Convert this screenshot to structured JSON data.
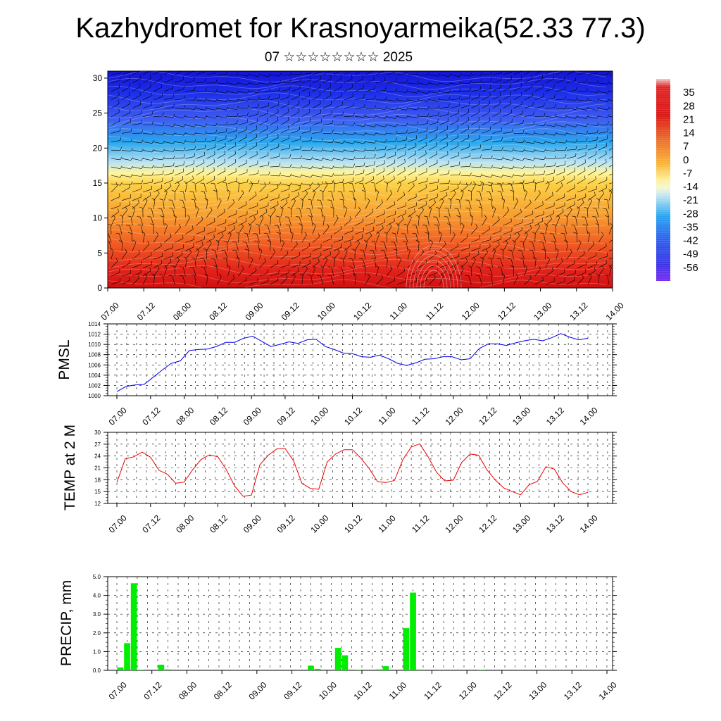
{
  "header": {
    "title": "Kazhydromet for Krasnoyarmeika(52.33 77.3)",
    "subtitle": "07 ☆☆☆☆☆☆☆☆ 2025"
  },
  "chart_data": [
    {
      "type": "heatmap",
      "title": "",
      "ylim": [
        0,
        31
      ],
      "y_ticks": [
        "0",
        "5",
        "10",
        "15",
        "20",
        "25",
        "30"
      ],
      "x_ticks": [
        "07.00",
        "07.12",
        "08.00",
        "08.12",
        "09.00",
        "09.12",
        "10.00",
        "10.12",
        "11.00",
        "11.12",
        "12.00",
        "12.12",
        "13.00",
        "13.12",
        "14.00"
      ],
      "colorbar": {
        "labels": [
          "35",
          "28",
          "21",
          "14",
          "7",
          "0",
          "-7",
          "-14",
          "-21",
          "-28",
          "-35",
          "-42",
          "-49",
          "-56"
        ],
        "min": -63,
        "max": 42
      },
      "overlay": "wind barbs"
    },
    {
      "type": "line",
      "ylabel": "PMSL",
      "ylim": [
        1000,
        1014
      ],
      "y_ticks": [
        "1000",
        "1002",
        "1004",
        "1006",
        "1008",
        "1010",
        "1012",
        "1014"
      ],
      "x_ticks": [
        "07.00",
        "07.12",
        "08.00",
        "08.12",
        "09.00",
        "09.12",
        "10.00",
        "10.12",
        "11.00",
        "11.12",
        "12.00",
        "12.12",
        "13.00",
        "13.12",
        "14.00"
      ],
      "color": "#0000ee",
      "values": [
        1000.8,
        1001.8,
        1002.1,
        1002.2,
        1003.6,
        1005.0,
        1006.3,
        1006.8,
        1008.8,
        1009.0,
        1009.1,
        1009.6,
        1010.4,
        1010.4,
        1011.2,
        1011.6,
        1010.6,
        1009.6,
        1010.0,
        1010.5,
        1010.2,
        1010.9,
        1011.0,
        1009.6,
        1009.0,
        1008.3,
        1008.2,
        1007.6,
        1007.5,
        1007.9,
        1007.2,
        1006.3,
        1005.9,
        1006.4,
        1007.1,
        1007.2,
        1007.6,
        1007.6,
        1007.0,
        1007.2,
        1009.2,
        1010.1,
        1010.1,
        1009.8,
        1010.3,
        1010.7,
        1011.0,
        1010.7,
        1011.3,
        1012.1,
        1011.4,
        1010.9,
        1011.2
      ]
    },
    {
      "type": "line",
      "ylabel": "TEMP at 2 M",
      "ylim": [
        12,
        30
      ],
      "y_ticks": [
        "12",
        "15",
        "18",
        "21",
        "24",
        "27",
        "30"
      ],
      "x_ticks": [
        "07.00",
        "07.12",
        "08.00",
        "08.12",
        "09.00",
        "09.12",
        "10.00",
        "10.12",
        "11.00",
        "11.12",
        "12.00",
        "12.12",
        "13.00",
        "13.12",
        "14.00"
      ],
      "color": "#ee0000",
      "values": [
        17.3,
        23.3,
        23.8,
        25.0,
        23.7,
        20.4,
        19.4,
        17.1,
        17.4,
        20.5,
        23.1,
        24.3,
        23.8,
        20.6,
        16.4,
        13.8,
        14.1,
        21.8,
        24.2,
        25.8,
        25.9,
        22.8,
        17.1,
        15.8,
        15.6,
        22.5,
        24.5,
        25.6,
        25.6,
        23.5,
        20.8,
        17.5,
        17.3,
        17.8,
        23.1,
        26.3,
        27.1,
        23.8,
        19.9,
        17.7,
        17.9,
        22.4,
        24.5,
        24.2,
        20.5,
        17.9,
        15.9,
        15.0,
        14.2,
        16.7,
        17.6,
        21.3,
        20.7,
        17.2,
        15.0,
        14.2,
        14.8
      ]
    },
    {
      "type": "bar",
      "ylabel": "PRECIP, mm",
      "ylim": [
        0,
        5
      ],
      "y_ticks": [
        "0.0",
        "1.0",
        "2.0",
        "3.0",
        "4.0",
        "5.0"
      ],
      "x_ticks": [
        "07.00",
        "07.12",
        "08.00",
        "08.12",
        "09.00",
        "09.12",
        "10.00",
        "10.12",
        "11.00",
        "11.12",
        "12.00",
        "12.12",
        "13.00",
        "13.12",
        "14.00"
      ],
      "color": "#00ee00",
      "values": [
        0,
        0.15,
        1.45,
        4.65,
        0.03,
        0,
        0,
        0.3,
        0.05,
        0,
        0,
        0,
        0,
        0,
        0,
        0,
        0,
        0,
        0,
        0,
        0,
        0,
        0,
        0,
        0,
        0,
        0,
        0,
        0,
        0.25,
        0.08,
        0,
        0,
        1.2,
        0.8,
        0,
        0.03,
        0,
        0,
        0.05,
        0.22,
        0,
        0,
        2.25,
        4.15,
        0.04,
        0,
        0,
        0,
        0,
        0,
        0,
        0,
        0,
        0.03,
        0,
        0,
        0,
        0,
        0,
        0,
        0,
        0,
        0,
        0,
        0,
        0,
        0,
        0,
        0,
        0,
        0,
        0
      ]
    }
  ]
}
